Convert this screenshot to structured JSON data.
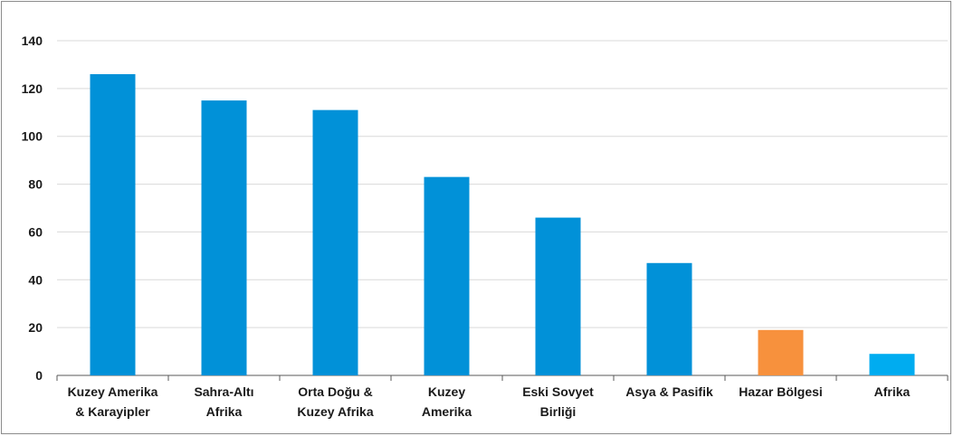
{
  "chart_data": {
    "type": "bar",
    "title": "",
    "xlabel": "",
    "ylabel": "",
    "ylim": [
      0,
      140
    ],
    "yticks": [
      0,
      20,
      40,
      60,
      80,
      100,
      120,
      140
    ],
    "grid": true,
    "legend": "none",
    "categories": [
      [
        "Kuzey Amerika",
        "& Karayipler"
      ],
      [
        "Sahra-Altı",
        "Afrika"
      ],
      [
        "Orta Doğu &",
        "Kuzey Afrika"
      ],
      [
        "Kuzey",
        "Amerika"
      ],
      [
        "Eski Sovyet",
        "Birliği"
      ],
      [
        "Asya & Pasifik"
      ],
      [
        "Hazar Bölgesi"
      ],
      [
        "Afrika"
      ]
    ],
    "values": [
      126,
      115,
      111,
      83,
      66,
      47,
      19,
      9
    ],
    "colors": [
      "#0191d8",
      "#0191d8",
      "#0191d8",
      "#0191d8",
      "#0191d8",
      "#0191d8",
      "#f7913d",
      "#00acf0"
    ]
  }
}
